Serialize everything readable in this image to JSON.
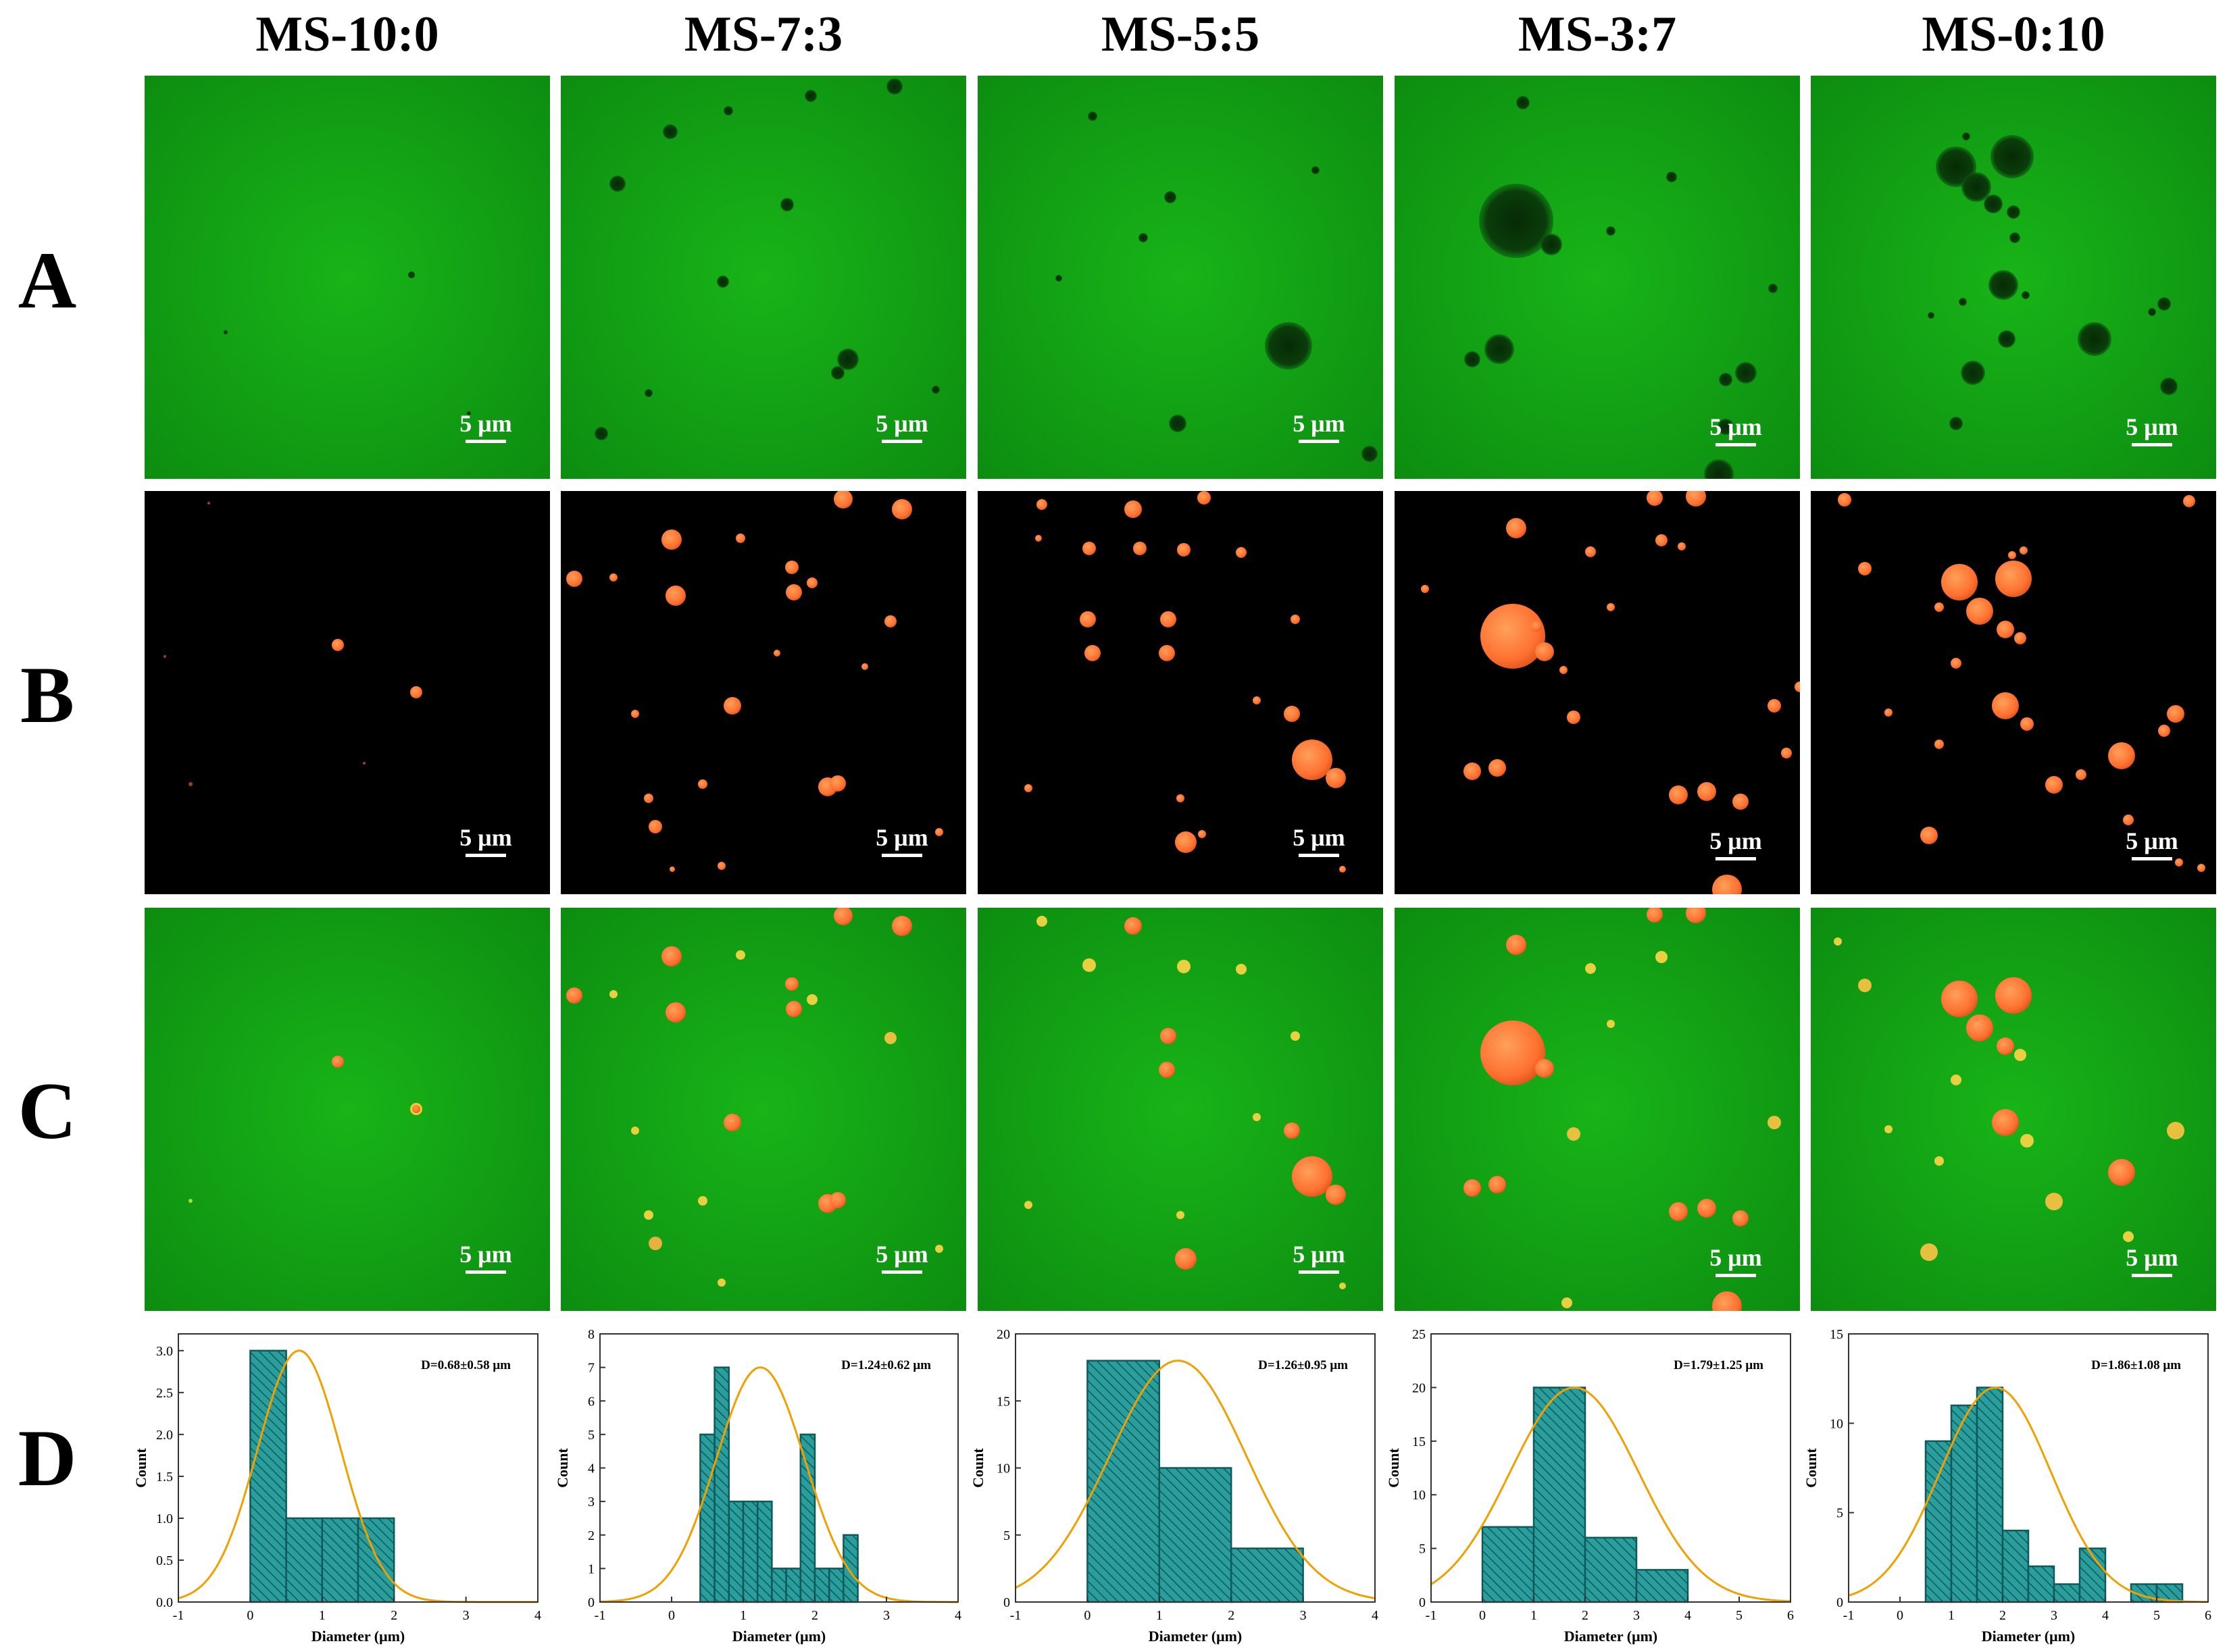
{
  "columns": [
    "MS-10:0",
    "MS-7:3",
    "MS-5:5",
    "MS-3:7",
    "MS-0:10"
  ],
  "rows": [
    "A",
    "B",
    "C",
    "D"
  ],
  "scale_bar_label": "5 μm",
  "colors": {
    "green_channel": "#14b814",
    "red_channel": "#ff7a33",
    "hist_fill": "#2a9d9d",
    "hist_edge": "#0e5a5a",
    "fit_curve": "#f0a000"
  },
  "chart_data": [
    {
      "type": "bar",
      "title": "MS-10:0",
      "annotation": "D=0.68±0.58 μm",
      "xlabel": "Diameter (μm)",
      "ylabel": "Count",
      "xlim": [
        -1,
        4
      ],
      "ylim": [
        0,
        3.2
      ],
      "xticks": [
        -1,
        0,
        1,
        2,
        3,
        4
      ],
      "yticks": [
        0.0,
        0.5,
        1.0,
        1.5,
        2.0,
        2.5,
        3.0
      ],
      "ytick_decimals": 1,
      "bins": [
        [
          0,
          0.5,
          3
        ],
        [
          0.5,
          1,
          1
        ],
        [
          1,
          1.5,
          1
        ],
        [
          1.5,
          2,
          1
        ]
      ],
      "fit": {
        "mean": 0.68,
        "sd": 0.58,
        "peak": 3.0
      }
    },
    {
      "type": "bar",
      "title": "MS-7:3",
      "annotation": "D=1.24±0.62 μm",
      "xlabel": "Diameter (μm)",
      "ylabel": "Count",
      "xlim": [
        -1,
        4
      ],
      "ylim": [
        0,
        8
      ],
      "xticks": [
        -1,
        0,
        1,
        2,
        3,
        4
      ],
      "yticks": [
        0,
        1,
        2,
        3,
        4,
        5,
        6,
        7,
        8
      ],
      "ytick_decimals": 0,
      "bins": [
        [
          0.4,
          0.6,
          5
        ],
        [
          0.6,
          0.8,
          7
        ],
        [
          0.8,
          1.0,
          3
        ],
        [
          1.0,
          1.2,
          3
        ],
        [
          1.2,
          1.4,
          3
        ],
        [
          1.4,
          1.6,
          1
        ],
        [
          1.6,
          1.8,
          1
        ],
        [
          1.8,
          2.0,
          5
        ],
        [
          2.0,
          2.2,
          1
        ],
        [
          2.2,
          2.4,
          1
        ],
        [
          2.4,
          2.6,
          2
        ]
      ],
      "fit": {
        "mean": 1.24,
        "sd": 0.62,
        "peak": 7.0
      }
    },
    {
      "type": "bar",
      "title": "MS-5:5",
      "annotation": "D=1.26±0.95 μm",
      "xlabel": "Diameter (μm)",
      "ylabel": "Count",
      "xlim": [
        -1,
        4
      ],
      "ylim": [
        0,
        20
      ],
      "xticks": [
        -1,
        0,
        1,
        2,
        3,
        4
      ],
      "yticks": [
        0,
        5,
        10,
        15,
        20
      ],
      "ytick_decimals": 0,
      "bins": [
        [
          0,
          1,
          18
        ],
        [
          1,
          2,
          10
        ],
        [
          2,
          3,
          4
        ]
      ],
      "fit": {
        "mean": 1.26,
        "sd": 0.95,
        "peak": 18.0
      }
    },
    {
      "type": "bar",
      "title": "MS-3:7",
      "annotation": "D=1.79±1.25 μm",
      "xlabel": "Diameter (μm)",
      "ylabel": "Count",
      "xlim": [
        -1,
        6
      ],
      "ylim": [
        0,
        25
      ],
      "xticks": [
        -1,
        0,
        1,
        2,
        3,
        4,
        5,
        6
      ],
      "yticks": [
        0,
        5,
        10,
        15,
        20,
        25
      ],
      "ytick_decimals": 0,
      "bins": [
        [
          0,
          1,
          7
        ],
        [
          1,
          2,
          20
        ],
        [
          2,
          3,
          6
        ],
        [
          3,
          4,
          3
        ]
      ],
      "fit": {
        "mean": 1.79,
        "sd": 1.25,
        "peak": 20.0
      }
    },
    {
      "type": "bar",
      "title": "MS-0:10",
      "annotation": "D=1.86±1.08 μm",
      "xlabel": "Diameter (μm)",
      "ylabel": "Count",
      "xlim": [
        -1,
        6
      ],
      "ylim": [
        0,
        15
      ],
      "xticks": [
        -1,
        0,
        1,
        2,
        3,
        4,
        5,
        6
      ],
      "yticks": [
        0,
        5,
        10,
        15
      ],
      "ytick_decimals": 0,
      "bins": [
        [
          0.5,
          1,
          9
        ],
        [
          1,
          1.5,
          11
        ],
        [
          1.5,
          2,
          12
        ],
        [
          2,
          2.5,
          4
        ],
        [
          2.5,
          3,
          2
        ],
        [
          3,
          3.5,
          1
        ],
        [
          3.5,
          4,
          3
        ],
        [
          4,
          4.5,
          0
        ],
        [
          4.5,
          5,
          1
        ],
        [
          5,
          5.5,
          1
        ]
      ],
      "fit": {
        "mean": 1.86,
        "sd": 1.08,
        "peak": 12.0
      }
    }
  ]
}
